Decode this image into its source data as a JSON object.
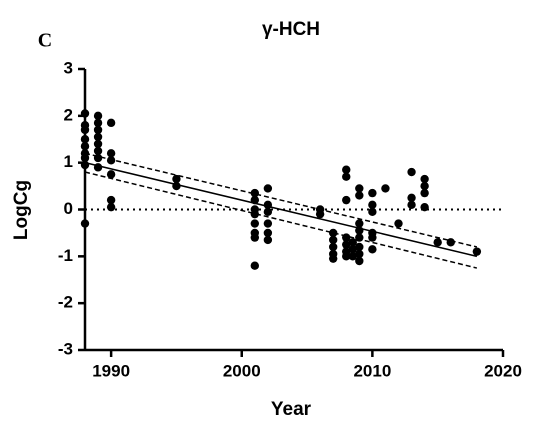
{
  "chart_data": {
    "type": "scatter",
    "panel_label": "C",
    "title": "γ-HCH",
    "x_label": "Year",
    "y_label": "LogCg",
    "color": "#000000",
    "x": [
      1988,
      1988,
      1988,
      1988,
      1988,
      1988,
      1988,
      1988,
      1988,
      1989,
      1989,
      1989,
      1989,
      1989,
      1989,
      1989,
      1989,
      1990,
      1990,
      1990,
      1990,
      1990,
      1990,
      1995,
      1995,
      2001,
      2001,
      2001,
      2001,
      2001,
      2001,
      2001,
      2001,
      2002,
      2002,
      2002,
      2002,
      2002,
      2002,
      2006,
      2006,
      2007,
      2007,
      2007,
      2007,
      2007,
      2008,
      2008,
      2008,
      2008,
      2008,
      2008,
      2008,
      2008.5,
      2008.5,
      2008.5,
      2009,
      2009,
      2009,
      2009,
      2009,
      2009,
      2009,
      2009,
      2010,
      2010,
      2010,
      2010,
      2010,
      2010,
      2011,
      2012,
      2013,
      2013,
      2013,
      2014,
      2014,
      2014,
      2014,
      2015,
      2016,
      2018
    ],
    "values": [
      2.05,
      1.8,
      1.7,
      1.5,
      1.35,
      1.2,
      1.1,
      0.95,
      -0.3,
      2.0,
      1.85,
      1.7,
      1.55,
      1.4,
      1.25,
      1.1,
      0.9,
      1.85,
      1.2,
      1.05,
      0.75,
      0.2,
      0.05,
      0.65,
      0.5,
      0.35,
      0.2,
      0,
      -0.1,
      -0.3,
      -0.5,
      -0.6,
      -1.2,
      0.45,
      0.1,
      -0.05,
      -0.3,
      -0.5,
      -0.65,
      0,
      -0.1,
      -0.5,
      -0.65,
      -0.8,
      -0.95,
      -1.05,
      0.85,
      0.7,
      0.2,
      -0.6,
      -0.75,
      -0.9,
      -1.0,
      -0.7,
      -0.85,
      -1.0,
      0.45,
      0.3,
      -0.3,
      -0.45,
      -0.6,
      -0.8,
      -0.95,
      -1.1,
      0.35,
      0.1,
      -0.05,
      -0.5,
      -0.6,
      -0.85,
      0.45,
      -0.3,
      0.8,
      0.25,
      0.1,
      0.65,
      0.5,
      0.35,
      0.05,
      -0.7,
      -0.7,
      -0.9
    ],
    "fit_lines": [
      {
        "style": "solid",
        "x": [
          1988,
          2018
        ],
        "values": [
          1.0,
          -1.0
        ]
      },
      {
        "style": "dashed",
        "x": [
          1988,
          2018
        ],
        "values": [
          1.2,
          -0.8
        ]
      },
      {
        "style": "dashed",
        "x": [
          1988,
          2018
        ],
        "values": [
          0.8,
          -1.25
        ]
      }
    ],
    "reference_line": 0,
    "xlim": [
      1988,
      2020
    ],
    "xticks": [
      1990,
      2000,
      2010,
      2020
    ],
    "ylim": [
      -3,
      3
    ],
    "yticks": [
      -3,
      -2,
      -1,
      0,
      1,
      2,
      3
    ]
  }
}
